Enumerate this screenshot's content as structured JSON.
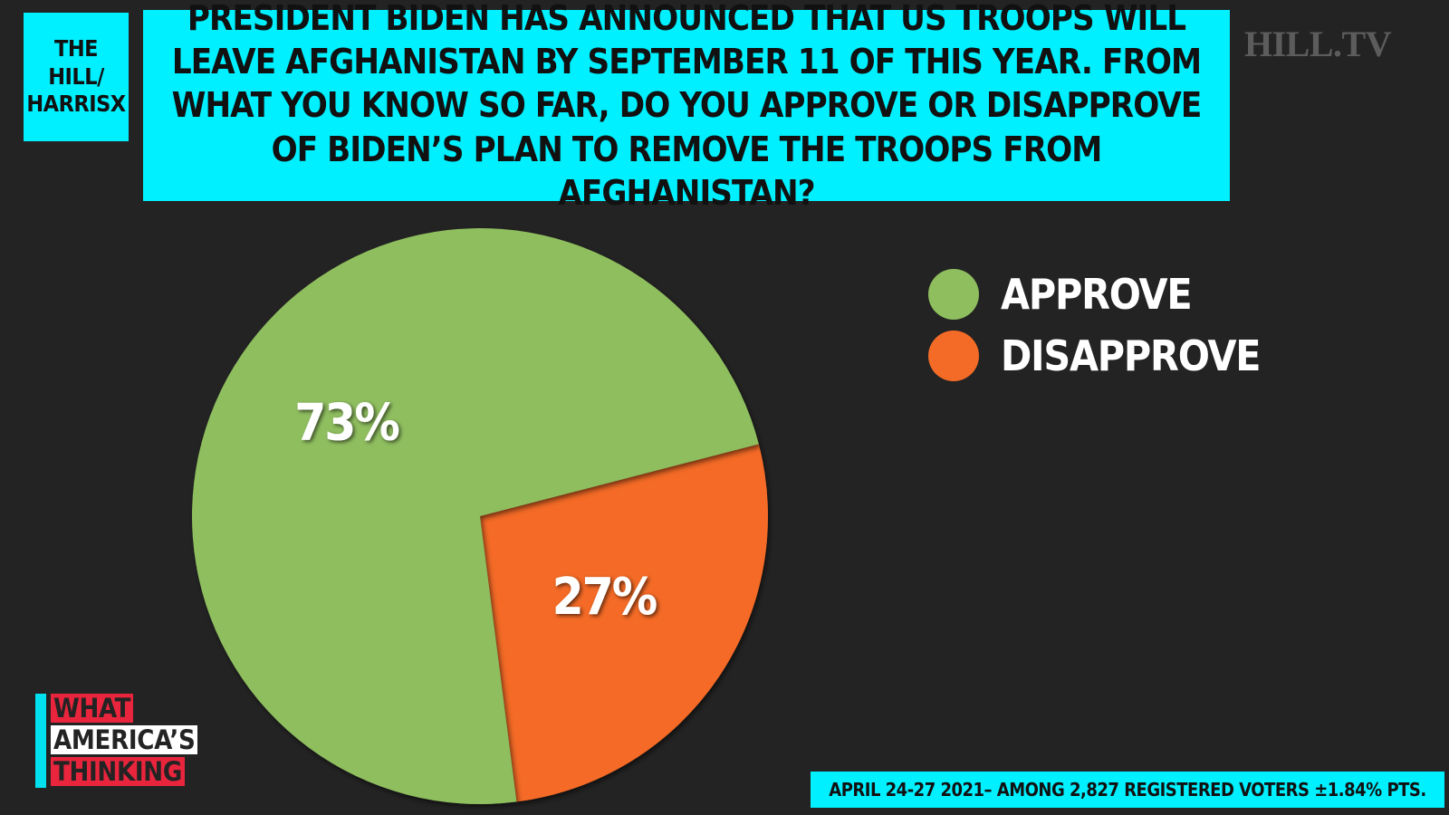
{
  "brand": {
    "line1": "THE HILL/",
    "line2": "HARRISX"
  },
  "question": "PRESIDENT BIDEN HAS ANNOUNCED THAT US TROOPS WILL LEAVE AFGHANISTAN BY SEPTEMBER 11 OF THIS YEAR. FROM WHAT YOU KNOW SO FAR, DO YOU APPROVE OR DISAPPROVE OF BIDEN’S PLAN TO REMOVE THE TROOPS FROM AFGHANISTAN?",
  "logo": "HILL.TV",
  "footer": "APRIL 24-27 2021– AMONG 2,827 REGISTERED VOTERS ±1.84% PTS.",
  "show": {
    "line1": "WHAT",
    "line2": "AMERICA’S",
    "line3": "THINKING"
  },
  "colors": {
    "background": "#232323",
    "accent": "#00f0ff",
    "approve": "#8fbe5e",
    "disapprove": "#f46b27",
    "show_red": "#e8253c"
  },
  "chart_data": {
    "type": "pie",
    "legend_position": "right",
    "slices": [
      {
        "label": "APPROVE",
        "value": 73,
        "display": "73%",
        "color": "#8fbe5e"
      },
      {
        "label": "DISAPPROVE",
        "value": 27,
        "display": "27%",
        "color": "#f46b27"
      }
    ]
  }
}
